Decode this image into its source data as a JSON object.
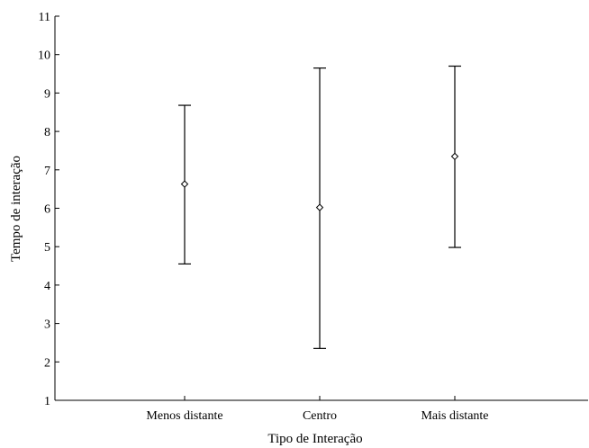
{
  "chart_data": {
    "type": "errorbar",
    "xlabel": "Tipo de Interação",
    "ylabel": "Tempo de interação",
    "ylim": [
      1,
      11
    ],
    "yticks": [
      "1",
      "2",
      "3",
      "4",
      "5",
      "6",
      "7",
      "8",
      "9",
      "10",
      "11"
    ],
    "categories": [
      "Menos distante",
      "Centro",
      "Mais distante"
    ],
    "series": [
      {
        "mean": [
          6.63,
          6.02,
          7.35
        ],
        "lower": [
          4.55,
          2.35,
          4.98
        ],
        "upper": [
          8.68,
          9.65,
          9.7
        ]
      }
    ],
    "grid": false,
    "colors": {
      "line": "#000000",
      "marker_fill": "#ffffff"
    }
  }
}
